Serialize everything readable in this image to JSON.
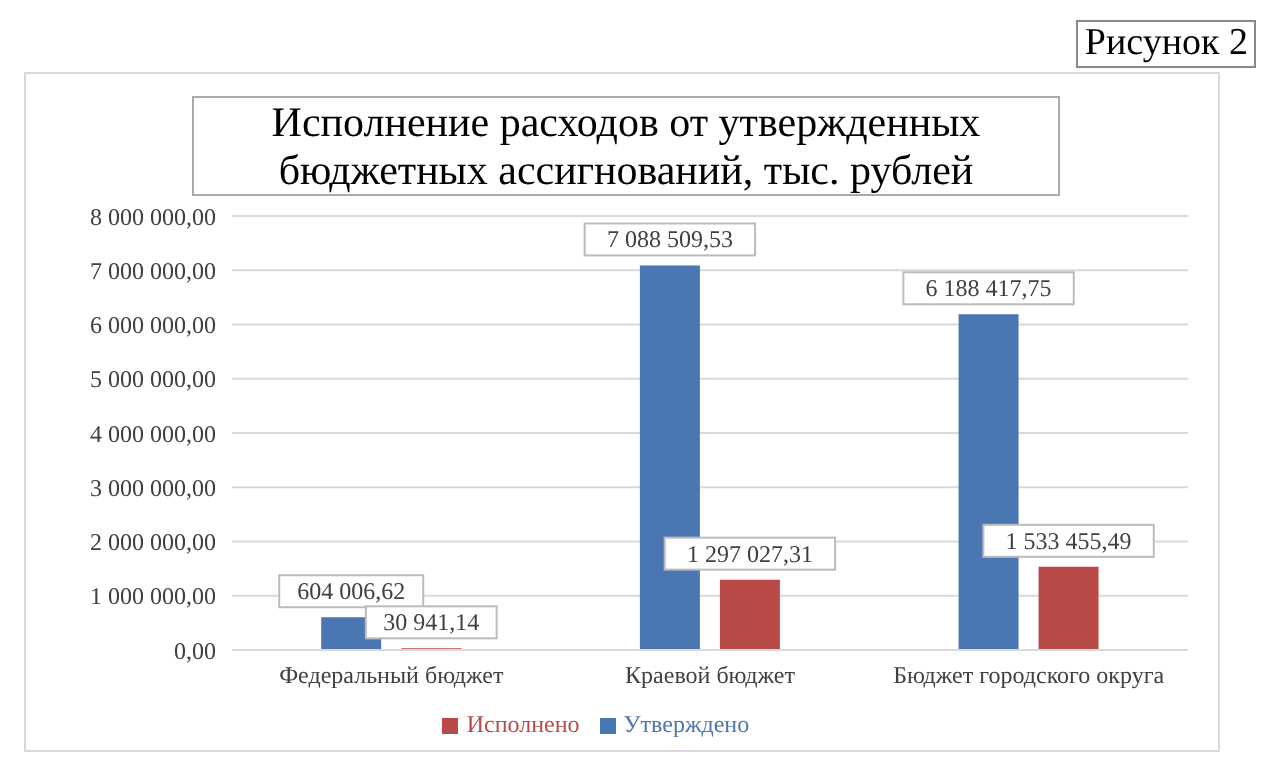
{
  "chart_data": {
    "type": "bar",
    "title": "Исполнение расходов от утвержденных бюджетных ассигнований, тыс. рублей",
    "annotations": [
      "Рисунок 2"
    ],
    "categories": [
      "Федеральный бюджет",
      "Краевой бюджет",
      "Бюджет городского округа"
    ],
    "series": [
      {
        "name": "Утверждено",
        "color": "#4a76b3",
        "values": [
          604006.62,
          7088509.53,
          6188417.75
        ],
        "value_labels": [
          "604 006,62",
          "7 088 509,53",
          "6 188 417,75"
        ]
      },
      {
        "name": "Исполнено",
        "color": "#b94a48",
        "values": [
          30941.14,
          1297027.31,
          1533455.49
        ],
        "value_labels": [
          "30 941,14",
          "1 297 027,31",
          "1 533 455,49"
        ]
      }
    ],
    "ylim": [
      0,
      8000000
    ],
    "yticks": [
      {
        "value": 0,
        "label": "0,00"
      },
      {
        "value": 1000000,
        "label": "1 000 000,00"
      },
      {
        "value": 2000000,
        "label": "2 000 000,00"
      },
      {
        "value": 3000000,
        "label": "3 000 000,00"
      },
      {
        "value": 4000000,
        "label": "4 000 000,00"
      },
      {
        "value": 5000000,
        "label": "5 000 000,00"
      },
      {
        "value": 6000000,
        "label": "6 000 000,00"
      },
      {
        "value": 7000000,
        "label": "7 000 000,00"
      },
      {
        "value": 8000000,
        "label": "8 000 000,00"
      }
    ],
    "grid": "y",
    "legend": "bottom"
  }
}
